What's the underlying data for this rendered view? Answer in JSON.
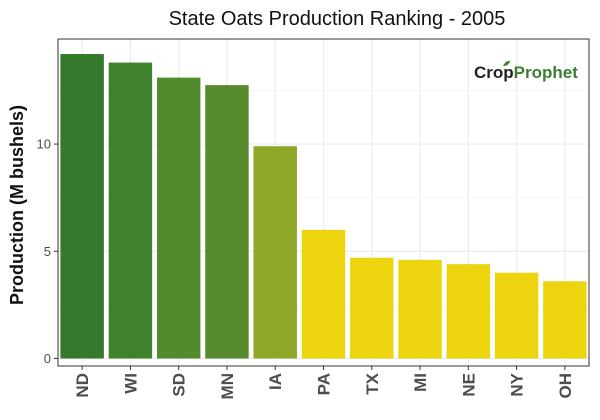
{
  "chart_data": {
    "type": "bar",
    "title": "State Oats Production Ranking - 2005",
    "xlabel": "",
    "ylabel": "Production (M bushels)",
    "categories": [
      "ND",
      "WI",
      "SD",
      "MN",
      "IA",
      "PA",
      "TX",
      "MI",
      "NE",
      "NY",
      "OH"
    ],
    "values": [
      14.2,
      13.8,
      13.1,
      12.75,
      9.9,
      6.0,
      4.7,
      4.6,
      4.4,
      4.0,
      3.6
    ],
    "bar_colors": [
      "#357a2c",
      "#3e822e",
      "#528a2e",
      "#588b2e",
      "#8fa729",
      "#ecd40f",
      "#ecd40f",
      "#ecd40f",
      "#ecd40f",
      "#ecd40f",
      "#ecd40f"
    ],
    "ylim": [
      -0.35,
      14.9
    ],
    "yticks": [
      0,
      5,
      10
    ],
    "grid": true,
    "legend": "none"
  },
  "logo": {
    "part1": "Crop",
    "part2": "Prophet",
    "color1": "#222222",
    "color2": "#3c7f2e"
  }
}
